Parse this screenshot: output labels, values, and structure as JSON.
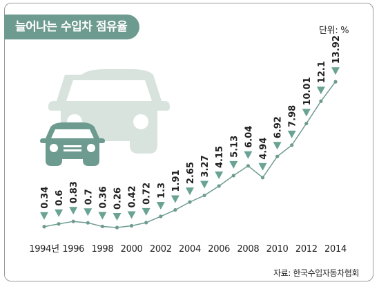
{
  "header": {
    "title": "늘어나는 수입차 점유율"
  },
  "unit_label": "단위: %",
  "source_label": "자료: 한국수입자동차협회",
  "colors": {
    "accent": "#6e9b90",
    "marker": "#6aa393",
    "car_light": "#d8e3de",
    "car_dark": "#6e9b90"
  },
  "icons": [
    "large-car-icon",
    "small-car-icon",
    "down-triangle-marker-icon"
  ],
  "chart_data": {
    "type": "line",
    "x": [
      "1994",
      "1995",
      "1996",
      "1997",
      "1998",
      "1999",
      "2000",
      "2001",
      "2002",
      "2003",
      "2004",
      "2005",
      "2006",
      "2007",
      "2008",
      "2009",
      "2010",
      "2011",
      "2012",
      "2013",
      "2014"
    ],
    "values": [
      0.34,
      0.6,
      0.83,
      0.7,
      0.36,
      0.26,
      0.42,
      0.72,
      1.3,
      1.91,
      2.65,
      3.27,
      4.15,
      5.13,
      6.04,
      4.94,
      6.92,
      7.98,
      10.01,
      12.1,
      13.92
    ],
    "value_labels": [
      "0.34",
      "0.6",
      "0.83",
      "0.7",
      "0.36",
      "0.26",
      "0.42",
      "0.72",
      "1.3",
      "1.91",
      "2.65",
      "3.27",
      "4.15",
      "5.13",
      "6.04",
      "4.94",
      "6.92",
      "7.98",
      "10.01",
      "12.1",
      "13.92"
    ],
    "tick_labels": [
      "1994년",
      "1996",
      "1998",
      "2000",
      "2002",
      "2004",
      "2006",
      "2008",
      "2010",
      "2012",
      "2014"
    ],
    "ylim": [
      0,
      14
    ],
    "grid": false,
    "title": "늘어나는 수입차 점유율",
    "ylabel": "단위: %"
  }
}
